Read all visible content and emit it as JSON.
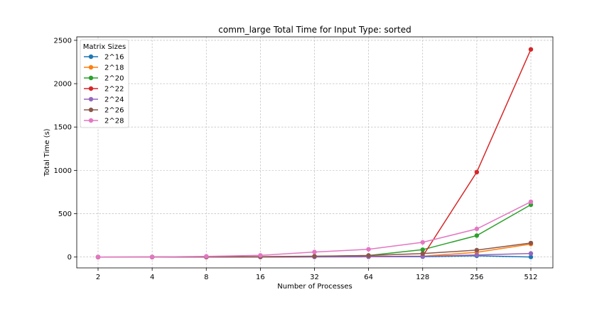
{
  "chart_data": {
    "type": "line",
    "title": "comm_large Total Time for Input Type: sorted",
    "xlabel": "Number of Processes",
    "ylabel": "Total Time (s)",
    "x_scale": "log2",
    "x": [
      2,
      4,
      8,
      16,
      32,
      64,
      128,
      256,
      512
    ],
    "x_tick_labels": [
      "2",
      "4",
      "8",
      "16",
      "32",
      "64",
      "128",
      "256",
      "512"
    ],
    "yticks": [
      0,
      500,
      1000,
      1500,
      2000,
      2500
    ],
    "y_tick_labels": [
      "0",
      "500",
      "1000",
      "1500",
      "2000",
      "2500"
    ],
    "ylim": [
      -125,
      2540
    ],
    "grid": true,
    "legend": {
      "title": "Matrix Sizes",
      "placement": "top-left"
    },
    "marker": "circle",
    "series": [
      {
        "name": "2^16",
        "color": "#1f77b4",
        "values": [
          0.1,
          0.2,
          0.5,
          1,
          2,
          3,
          4,
          15,
          1
        ]
      },
      {
        "name": "2^18",
        "color": "#ff7f0e",
        "values": [
          0.2,
          0.3,
          0.8,
          2,
          4,
          6,
          10,
          55,
          150
        ]
      },
      {
        "name": "2^20",
        "color": "#2ca02c",
        "values": [
          0.3,
          0.5,
          1.5,
          4,
          8,
          18,
          85,
          248,
          603
        ]
      },
      {
        "name": "2^22",
        "color": "#d62728",
        "values": [
          0.3,
          0.5,
          1,
          2,
          4,
          6,
          10,
          980,
          2395
        ]
      },
      {
        "name": "2^24",
        "color": "#9467bd",
        "values": [
          0.2,
          0.4,
          1,
          2,
          3,
          5,
          8,
          25,
          42
        ]
      },
      {
        "name": "2^26",
        "color": "#8c564b",
        "values": [
          0.3,
          0.6,
          2,
          5,
          10,
          18,
          40,
          80,
          162
        ]
      },
      {
        "name": "2^28",
        "color": "#e377c2",
        "values": [
          0.5,
          1,
          8,
          20,
          58,
          90,
          170,
          325,
          638
        ]
      }
    ]
  }
}
